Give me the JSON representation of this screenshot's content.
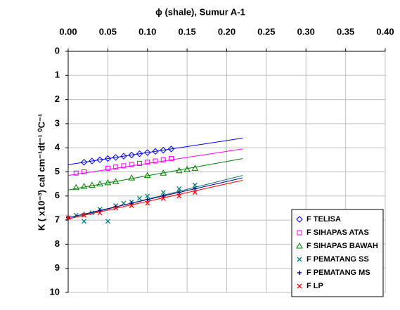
{
  "chart_data": {
    "type": "scatter",
    "title": "ϕ (shale), Sumur A-1",
    "y_label": "K ( x10⁻³) cal cm⁻¹dt⁻¹ ⁰C⁻¹",
    "xlim": [
      0,
      0.4
    ],
    "xticks": [
      {
        "value": 0,
        "label": "0.00"
      },
      {
        "value": 0.05,
        "label": "0.05"
      },
      {
        "value": 0.1,
        "label": "0.10"
      },
      {
        "value": 0.15,
        "label": "0.15"
      },
      {
        "value": 0.2,
        "label": "0.20"
      },
      {
        "value": 0.25,
        "label": "0.25"
      },
      {
        "value": 0.3,
        "label": "0.30"
      },
      {
        "value": 0.35,
        "label": "0.35"
      },
      {
        "value": 0.4,
        "label": "0.40"
      }
    ],
    "ylim": [
      0,
      10
    ],
    "yticks": [
      0,
      1,
      2,
      3,
      4,
      5,
      6,
      7,
      8,
      9,
      10
    ],
    "y_inverted": true,
    "x_axis_position": "top",
    "grid": true,
    "legend": "lower right",
    "series": [
      {
        "name": "F TELISA",
        "color": "#0000ff",
        "marker": "diamond",
        "x": [
          0.02,
          0.03,
          0.04,
          0.05,
          0.06,
          0.07,
          0.08,
          0.09,
          0.1,
          0.11,
          0.12,
          0.13
        ],
        "values": [
          4.6,
          4.55,
          4.5,
          4.45,
          4.4,
          4.35,
          4.3,
          4.25,
          4.2,
          4.15,
          4.1,
          4.05
        ],
        "trend": {
          "x": [
            0,
            0.22
          ],
          "y": [
            4.7,
            3.6
          ]
        }
      },
      {
        "name": "F SIHAPAS ATAS",
        "color": "#ff00ff",
        "marker": "square",
        "x": [
          0.01,
          0.02,
          0.05,
          0.06,
          0.07,
          0.08,
          0.09,
          0.1,
          0.11,
          0.12,
          0.13
        ],
        "values": [
          5.05,
          5.0,
          4.85,
          4.8,
          4.75,
          4.7,
          4.65,
          4.6,
          4.55,
          4.5,
          4.45
        ],
        "trend": {
          "x": [
            0,
            0.22
          ],
          "y": [
            5.15,
            4.05
          ]
        }
      },
      {
        "name": "F SIHAPAS BAWAH",
        "color": "#008000",
        "marker": "triangle",
        "x": [
          0.01,
          0.02,
          0.03,
          0.04,
          0.05,
          0.06,
          0.08,
          0.1,
          0.12,
          0.14,
          0.15,
          0.16
        ],
        "values": [
          5.65,
          5.6,
          5.55,
          5.5,
          5.45,
          5.4,
          5.25,
          5.15,
          5.05,
          4.95,
          4.9,
          4.85
        ],
        "trend": {
          "x": [
            0,
            0.22
          ],
          "y": [
            5.75,
            4.45
          ]
        }
      },
      {
        "name": "F PEMATANG SS",
        "color": "#008080",
        "marker": "x",
        "x": [
          0.01,
          0.02,
          0.03,
          0.04,
          0.05,
          0.06,
          0.07,
          0.08,
          0.09,
          0.1,
          0.12,
          0.14,
          0.16
        ],
        "values": [
          6.8,
          7.05,
          6.7,
          6.55,
          7.05,
          6.4,
          6.3,
          6.25,
          6.1,
          6.0,
          5.85,
          5.7,
          5.55
        ],
        "trend": {
          "x": [
            0,
            0.22
          ],
          "y": [
            6.95,
            5.15
          ]
        }
      },
      {
        "name": "F PEMATANG MS",
        "color": "#000080",
        "marker": "plus",
        "x": [
          0.0,
          0.02,
          0.04,
          0.06,
          0.08,
          0.1,
          0.12,
          0.14,
          0.16
        ],
        "values": [
          6.9,
          6.75,
          6.6,
          6.45,
          6.3,
          6.15,
          6.0,
          5.85,
          5.7
        ],
        "trend": {
          "x": [
            0,
            0.22
          ],
          "y": [
            6.9,
            5.25
          ]
        }
      },
      {
        "name": "F LP",
        "color": "#ff0000",
        "marker": "x",
        "x": [
          0.0,
          0.02,
          0.04,
          0.06,
          0.08,
          0.1,
          0.12,
          0.14,
          0.16
        ],
        "values": [
          6.9,
          6.8,
          6.7,
          6.5,
          6.4,
          6.3,
          6.1,
          6.0,
          5.85
        ],
        "trend": {
          "x": [
            0,
            0.22
          ],
          "y": [
            6.95,
            5.35
          ]
        }
      }
    ]
  }
}
